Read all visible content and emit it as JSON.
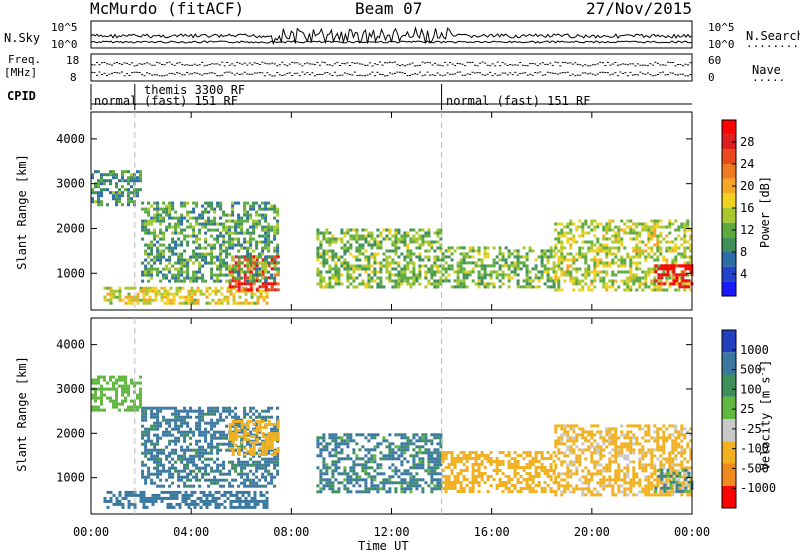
{
  "header": {
    "station": "McMurdo (fitACF)",
    "beam": "Beam 07",
    "date": "27/Nov/2015"
  },
  "left_labels": {
    "nsky": "N.Sky",
    "freq_line1": "Freq.",
    "freq_line2": "[MHz]",
    "cpid": "CPID"
  },
  "right_labels": {
    "nsearch": "N.Search",
    "nsearch_dots": ".........",
    "nave": "Nave",
    "nave_dots": "....."
  },
  "small_axes": {
    "noise_left_ticks": [
      "10^5",
      "10^0"
    ],
    "noise_right_ticks": [
      "10^5",
      "10^0"
    ],
    "freq_left_ticks": [
      "18",
      "8"
    ],
    "freq_right_ticks": [
      "60",
      "0"
    ]
  },
  "cpid_segments": [
    {
      "label": "normal",
      "start_hour": 0.0,
      "end_hour": 1.75
    },
    {
      "label": "themis 3300 RF",
      "start_hour": 1.75,
      "end_hour": 14.0
    },
    {
      "label": "(fast) 151 RF",
      "start_hour": 1.75,
      "end_hour": 14.0
    },
    {
      "label": "normal (fast) 151 RF",
      "start_hour": 14.0,
      "end_hour": 24.0
    }
  ],
  "axes": {
    "ylabel": "Slant Range [km]",
    "xlabel": "Time UT",
    "x_ticks": [
      "00:00",
      "04:00",
      "08:00",
      "12:00",
      "16:00",
      "20:00",
      "00:00"
    ],
    "y_ticks": [
      "1000",
      "2000",
      "3000",
      "4000"
    ]
  },
  "colorbars": {
    "power": {
      "label": "Power [dB]",
      "ticks": [
        "4",
        "8",
        "12",
        "16",
        "20",
        "24",
        "28"
      ],
      "colors": [
        "#1a1aff",
        "#2244cc",
        "#2e6ea8",
        "#3f8f5a",
        "#5cab3f",
        "#a8c830",
        "#f0d020",
        "#f5a623",
        "#f07a20",
        "#e84c1c",
        "#dd1f1f",
        "#ff0000"
      ]
    },
    "velocity": {
      "label": "Velocity [m s^-1]",
      "ticks": [
        "1000",
        "500",
        "100",
        "25",
        "-25",
        "-100",
        "-500",
        "-1000"
      ],
      "colors": [
        "#2040c0",
        "#3a78a0",
        "#3f8f5a",
        "#60b840",
        "#c8c8c8",
        "#f0b020",
        "#f08a20",
        "#ff0000"
      ]
    }
  },
  "chart_data": [
    {
      "type": "heatmap",
      "title": "Beam 07",
      "xlabel": "Time UT",
      "ylabel": "Slant Range [km]",
      "xlim_hours": [
        0,
        24
      ],
      "ylim_km": [
        180,
        4600
      ],
      "colorbar_label": "Power [dB]",
      "colorbar_range": [
        0,
        30
      ],
      "echo_regions": [
        {
          "t_start": 0.5,
          "t_end": 7.0,
          "r_min": 350,
          "r_max": 700,
          "value": 16
        },
        {
          "t_start": 5.5,
          "t_end": 7.5,
          "r_min": 600,
          "r_max": 1400,
          "value": 26
        },
        {
          "t_start": 2.0,
          "t_end": 7.5,
          "r_min": 800,
          "r_max": 2600,
          "value": 10
        },
        {
          "t_start": 0.0,
          "t_end": 2.0,
          "r_min": 2500,
          "r_max": 3300,
          "value": 9
        },
        {
          "t_start": 9.0,
          "t_end": 14.0,
          "r_min": 700,
          "r_max": 2000,
          "value": 12
        },
        {
          "t_start": 14.0,
          "t_end": 18.5,
          "r_min": 700,
          "r_max": 1600,
          "value": 12
        },
        {
          "t_start": 18.5,
          "t_end": 24.0,
          "r_min": 600,
          "r_max": 2200,
          "value": 14
        },
        {
          "t_start": 22.5,
          "t_end": 24.0,
          "r_min": 700,
          "r_max": 1200,
          "value": 28
        }
      ]
    },
    {
      "type": "heatmap",
      "xlabel": "Time UT",
      "ylabel": "Slant Range [km]",
      "xlim_hours": [
        0,
        24
      ],
      "ylim_km": [
        180,
        4600
      ],
      "colorbar_label": "Velocity [m s^-1]",
      "colorbar_range": [
        -1000,
        1000
      ],
      "echo_regions": [
        {
          "t_start": 0.5,
          "t_end": 7.0,
          "r_min": 350,
          "r_max": 700,
          "value": 300
        },
        {
          "t_start": 2.0,
          "t_end": 7.5,
          "r_min": 800,
          "r_max": 2600,
          "value": 200
        },
        {
          "t_start": 5.5,
          "t_end": 7.5,
          "r_min": 1500,
          "r_max": 2300,
          "value": -300
        },
        {
          "t_start": 0.0,
          "t_end": 2.0,
          "r_min": 2500,
          "r_max": 3300,
          "value": 0
        },
        {
          "t_start": 9.0,
          "t_end": 14.0,
          "r_min": 700,
          "r_max": 2000,
          "value": 150
        },
        {
          "t_start": 14.0,
          "t_end": 18.5,
          "r_min": 700,
          "r_max": 1600,
          "value": -300
        },
        {
          "t_start": 18.5,
          "t_end": 24.0,
          "r_min": 600,
          "r_max": 2200,
          "value": -200
        },
        {
          "t_start": 22.5,
          "t_end": 24.0,
          "r_min": 700,
          "r_max": 1200,
          "value": 80
        }
      ]
    }
  ]
}
